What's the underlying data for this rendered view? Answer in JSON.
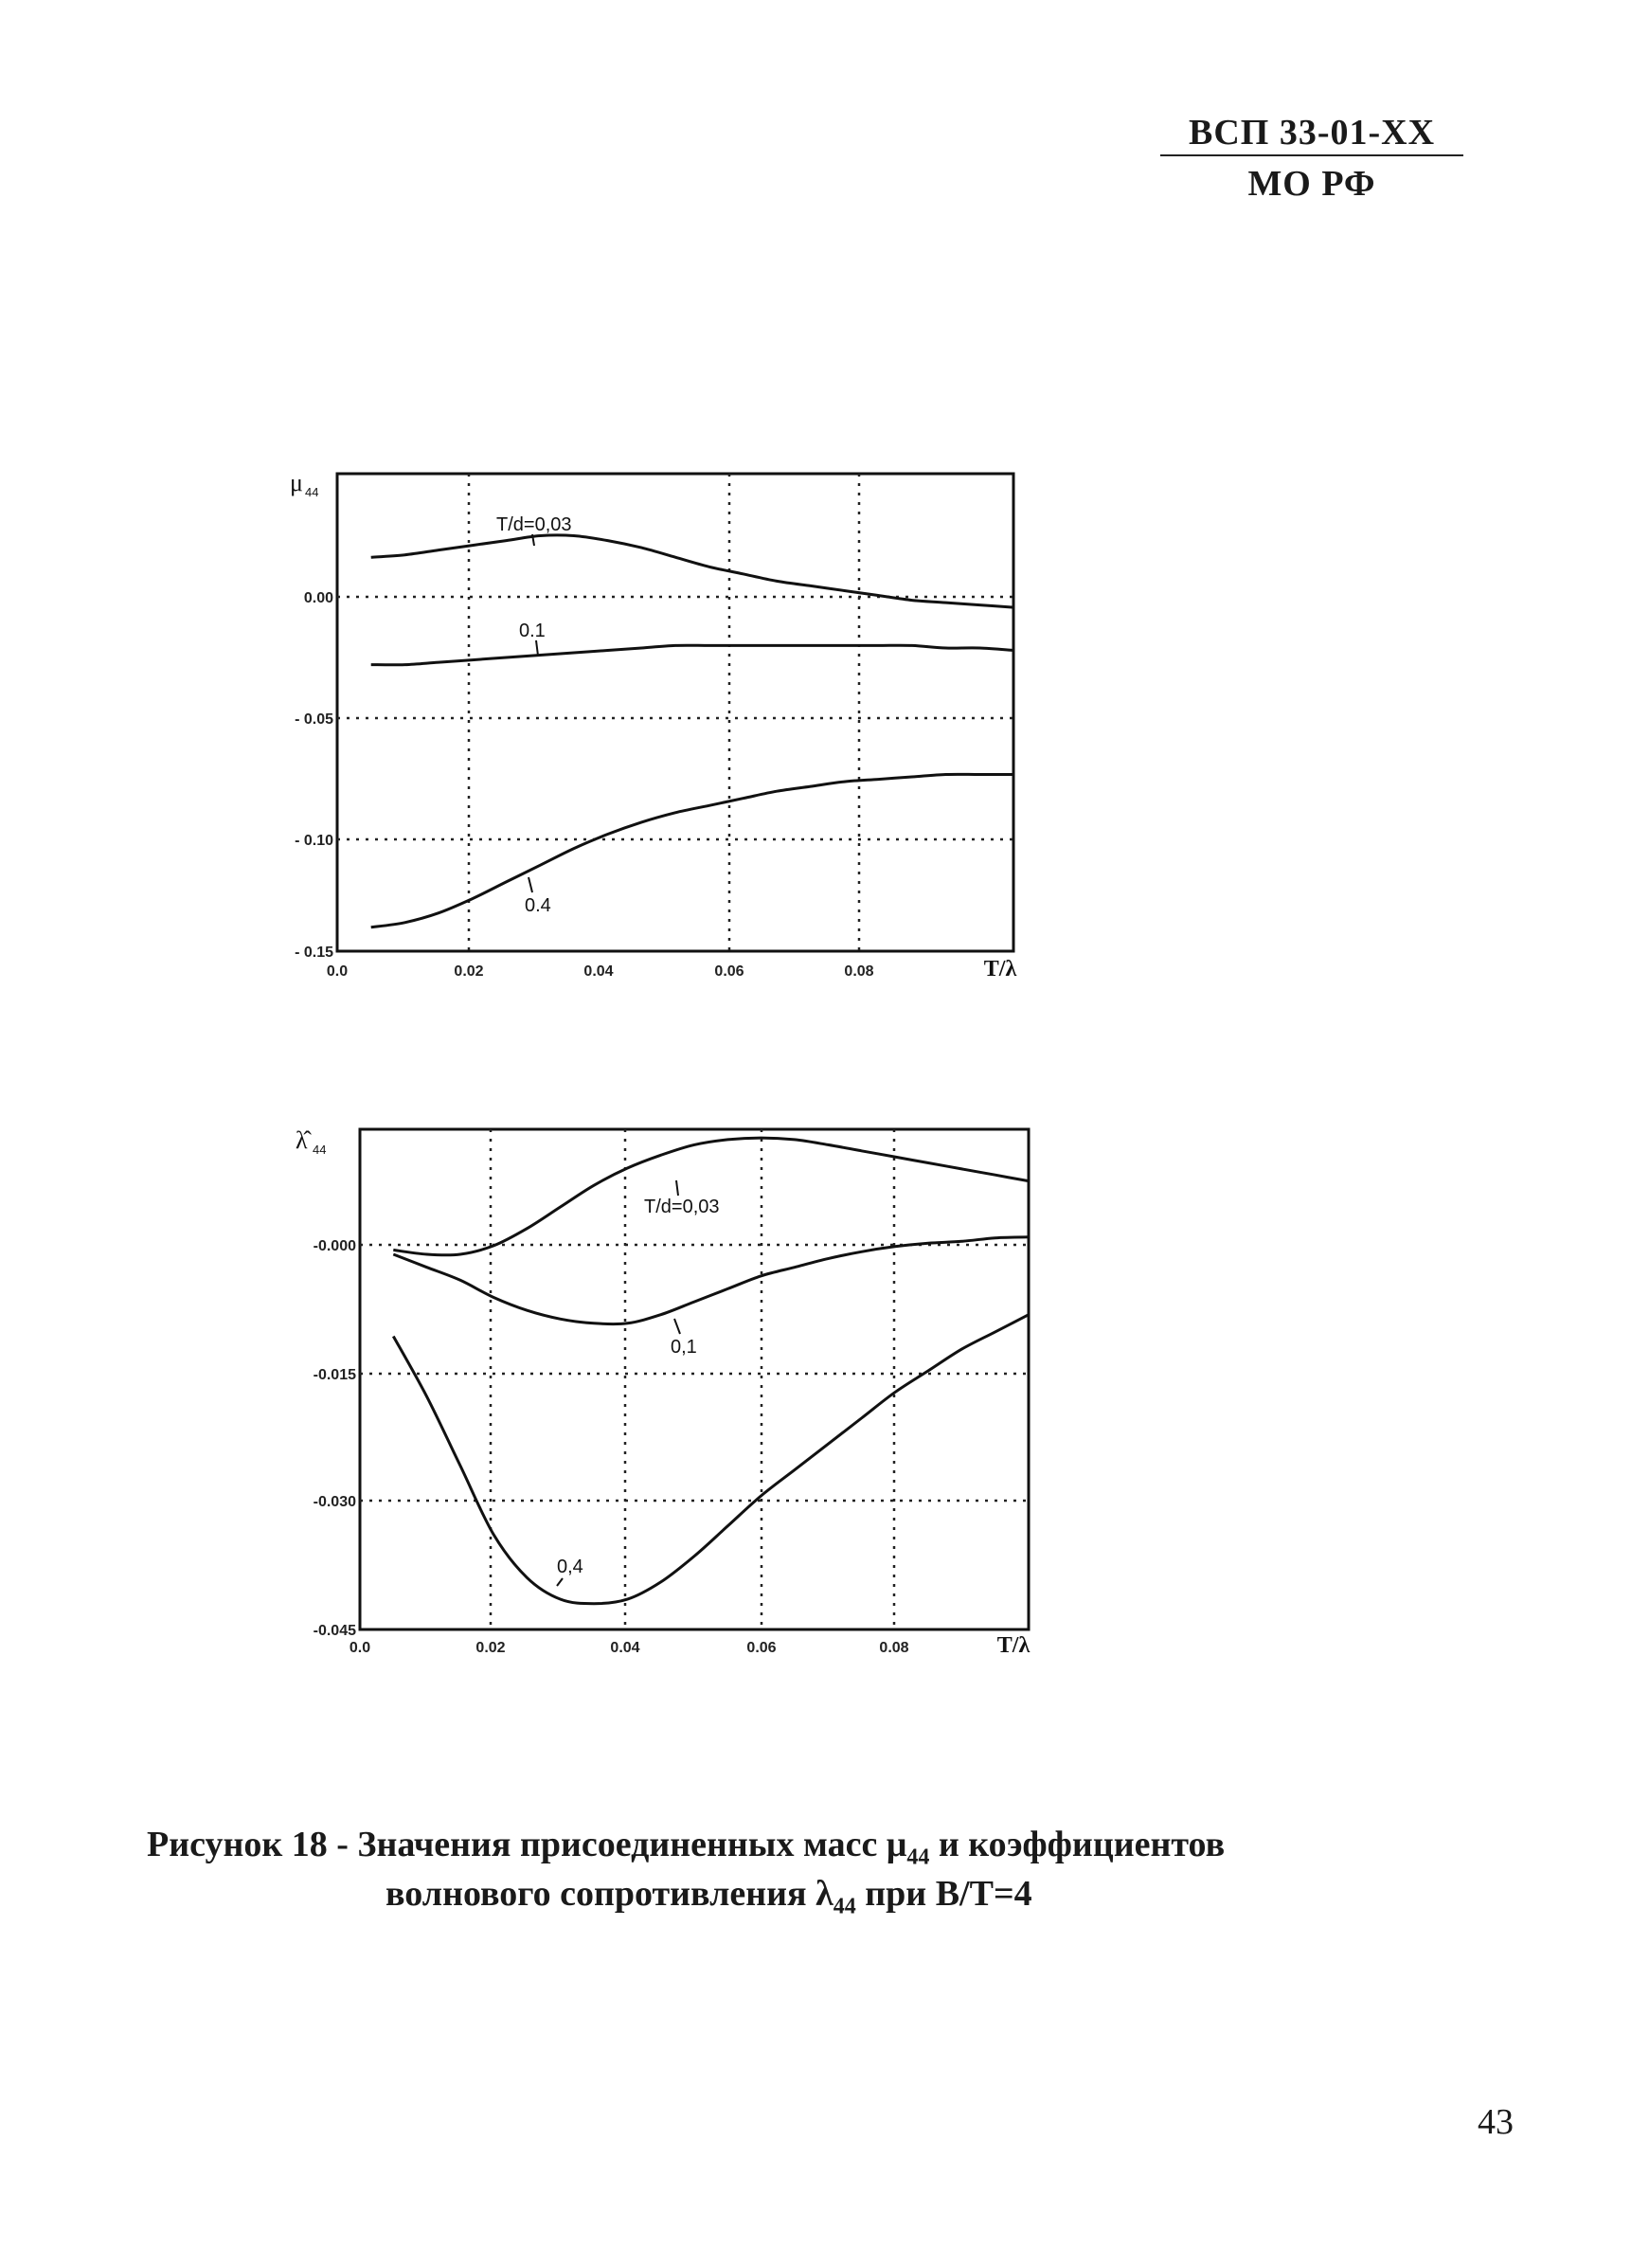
{
  "header": {
    "line1": "ВСП 33-01-XX",
    "line2": "МО РФ"
  },
  "charts": [
    {
      "ylabel_symbol": "μ",
      "ylabel_sub": "44",
      "xlabel": "T/λ",
      "x_ticks": [
        "0.0",
        "0.02",
        "0.04",
        "0.06",
        "0.08"
      ],
      "y_ticks": [
        "0.00",
        "- 0.05",
        "- 0.10",
        "- 0.15"
      ],
      "annotations": [
        "T/d=0,03",
        "0.1",
        "0.4"
      ]
    },
    {
      "ylabel_symbol": "λ̂",
      "ylabel_sub": "44",
      "xlabel": "T/λ",
      "x_ticks": [
        "0.0",
        "0.02",
        "0.04",
        "0.06",
        "0.08"
      ],
      "y_ticks": [
        "-0.000",
        "-0.015",
        "-0.030",
        "-0.045"
      ],
      "annotations": [
        "T/d=0,03",
        "0,1",
        "0,4"
      ]
    }
  ],
  "chart_data": [
    {
      "type": "line",
      "xlabel": "T/λ",
      "ylabel": "μ44",
      "xlim": [
        0,
        0.1
      ],
      "ylim": [
        -0.15,
        0.05
      ],
      "grid": true,
      "x": [
        0.005,
        0.01,
        0.015,
        0.02,
        0.025,
        0.03,
        0.035,
        0.04,
        0.045,
        0.05,
        0.055,
        0.06,
        0.065,
        0.07,
        0.075,
        0.08,
        0.085,
        0.09,
        0.095,
        0.1
      ],
      "series": [
        {
          "name": "T/d=0,03",
          "values": [
            0.015,
            0.016,
            0.018,
            0.02,
            0.022,
            0.024,
            0.024,
            0.022,
            0.019,
            0.015,
            0.011,
            0.008,
            0.005,
            0.003,
            0.001,
            -0.001,
            -0.003,
            -0.004,
            -0.005,
            -0.006
          ]
        },
        {
          "name": "0.1",
          "values": [
            -0.03,
            -0.03,
            -0.029,
            -0.028,
            -0.027,
            -0.026,
            -0.025,
            -0.024,
            -0.023,
            -0.022,
            -0.022,
            -0.022,
            -0.022,
            -0.022,
            -0.022,
            -0.022,
            -0.022,
            -0.023,
            -0.023,
            -0.024
          ]
        },
        {
          "name": "0.4",
          "values": [
            -0.14,
            -0.138,
            -0.134,
            -0.128,
            -0.121,
            -0.114,
            -0.107,
            -0.101,
            -0.096,
            -0.092,
            -0.089,
            -0.086,
            -0.083,
            -0.081,
            -0.079,
            -0.078,
            -0.077,
            -0.076,
            -0.076,
            -0.076
          ]
        }
      ]
    },
    {
      "type": "line",
      "xlabel": "T/λ",
      "ylabel": "λ̂44",
      "xlim": [
        0,
        0.1
      ],
      "ylim": [
        -0.045,
        0.013
      ],
      "grid": true,
      "x": [
        0.005,
        0.01,
        0.015,
        0.02,
        0.025,
        0.03,
        0.035,
        0.04,
        0.045,
        0.05,
        0.055,
        0.06,
        0.065,
        0.07,
        0.075,
        0.08,
        0.085,
        0.09,
        0.095,
        0.1
      ],
      "series": [
        {
          "name": "T/d=0,03",
          "values": [
            -0.001,
            -0.0015,
            -0.0015,
            -0.0005,
            0.0015,
            0.004,
            0.0065,
            0.0085,
            0.01,
            0.0112,
            0.0118,
            0.012,
            0.0118,
            0.0112,
            0.0105,
            0.0098,
            0.0091,
            0.0084,
            0.0077,
            0.007
          ]
        },
        {
          "name": "0,1",
          "values": [
            -0.0015,
            -0.003,
            -0.0045,
            -0.0065,
            -0.008,
            -0.009,
            -0.0095,
            -0.0095,
            -0.0085,
            -0.007,
            -0.0055,
            -0.004,
            -0.003,
            -0.002,
            -0.0012,
            -0.0006,
            -0.0002,
            0.0,
            0.0004,
            0.0005
          ]
        },
        {
          "name": "0,4",
          "values": [
            -0.011,
            -0.018,
            -0.026,
            -0.034,
            -0.039,
            -0.0415,
            -0.042,
            -0.0415,
            -0.0395,
            -0.0365,
            -0.033,
            -0.0295,
            -0.0265,
            -0.0235,
            -0.0205,
            -0.0175,
            -0.015,
            -0.0125,
            -0.0105,
            -0.0085
          ]
        }
      ]
    }
  ],
  "caption": {
    "prefix": "Рисунок 18 - Значения присоединенных масс μ",
    "sub1": "44",
    "mid": " и коэффициентов",
    "line2_prefix": "волнового сопротивления λ",
    "sub2": "44",
    "line2_suffix": " при B/T=4"
  },
  "page_number": "43"
}
